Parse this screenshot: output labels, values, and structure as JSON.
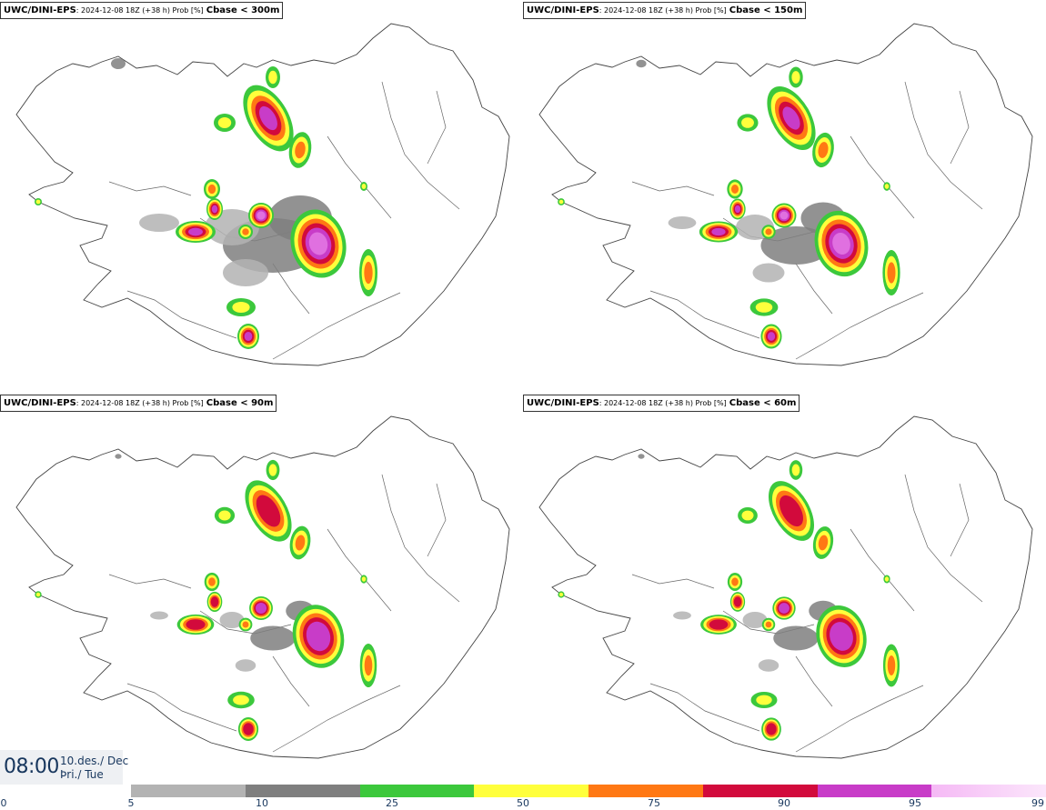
{
  "panels": [
    {
      "source": "UWC/DINI-EPS",
      "meta": ": 2024-12-08 18Z (+38 h) Prob [%]",
      "threshold": "Cbase < 300m",
      "scale": 1.0
    },
    {
      "source": "UWC/DINI-EPS",
      "meta": ": 2024-12-08 18Z (+38 h) Prob [%]",
      "threshold": "Cbase < 150m",
      "scale": 0.85
    },
    {
      "source": "UWC/DINI-EPS",
      "meta": ": 2024-12-08 18Z (+38 h) Prob [%]",
      "threshold": "Cbase < 90m",
      "scale": 0.7
    },
    {
      "source": "UWC/DINI-EPS",
      "meta": ": 2024-12-08 18Z (+38 h) Prob [%]",
      "threshold": "Cbase < 60m",
      "scale": 0.62
    }
  ],
  "valid_time": {
    "time": "08:00",
    "date_line": "10.des./ Dec",
    "day_line": "Þri./ Tue"
  },
  "legend": {
    "ticks": [
      "0",
      "5",
      "10",
      "25",
      "50",
      "75",
      "90",
      "95",
      "99"
    ],
    "colors": [
      "#b3b3b3",
      "#7f7f7f",
      "#3cc83c",
      "#ffff3c",
      "#ff7814",
      "#d20a3c",
      "#c83cc8",
      "#f5b9f5"
    ]
  }
}
